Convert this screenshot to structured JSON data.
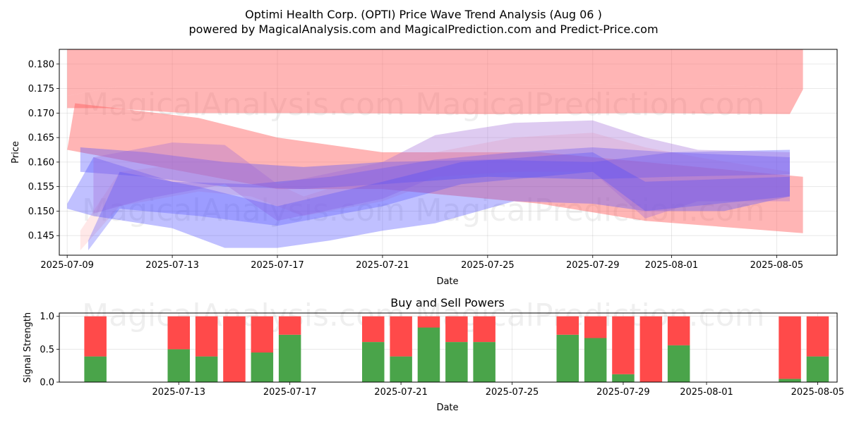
{
  "chart_data": [
    {
      "type": "area",
      "title_line1": "Optimi Health Corp. (OPTI) Price Wave Trend Analysis (Aug 06 )",
      "title_line2": "powered by MagicalAnalysis.com and MagicalPrediction.com and Predict-Price.com",
      "xlabel": "Date",
      "ylabel": "Price",
      "x_range": [
        "2025-07-09",
        "2025-08-07"
      ],
      "ylim": [
        0.141,
        0.183
      ],
      "x_ticks": [
        "2025-07-09",
        "2025-07-13",
        "2025-07-17",
        "2025-07-21",
        "2025-07-25",
        "2025-07-29",
        "2025-08-01",
        "2025-08-05"
      ],
      "y_ticks": [
        "0.145",
        "0.150",
        "0.155",
        "0.160",
        "0.165",
        "0.170",
        "0.175",
        "0.180"
      ],
      "watermarks": [
        "MagicalAnalysis.com",
        "MagicalPrediction.com",
        "MagicalAnalysis.com",
        "MagicalPrediction.com"
      ],
      "colors": {
        "red": "#ff5a5a",
        "blue": "#4a4aff",
        "pink": "#ffb4b4",
        "purple": "#a06ad8"
      },
      "bands": [
        {
          "color": "red",
          "opacity": 0.45,
          "points": [
            [
              0.0,
              0.1735
            ],
            [
              2.0,
              0.1755
            ],
            [
              6.0,
              0.1755
            ],
            [
              12.0,
              0.1755
            ],
            [
              20.0,
              0.176
            ],
            [
              26.0,
              0.1755
            ],
            [
              28.0,
              0.1748
            ]
          ],
          "lower": [
            [
              0.0,
              0.171
            ],
            [
              1.5,
              0.171
            ],
            [
              4.5,
              0.17
            ],
            [
              10.0,
              0.17
            ],
            [
              16.0,
              0.1698
            ],
            [
              22.0,
              0.17
            ],
            [
              27.5,
              0.1698
            ]
          ]
        },
        {
          "color": "red",
          "opacity": 0.45,
          "points": [
            [
              0.0,
              0.183
            ],
            [
              3.0,
              0.183
            ],
            [
              10.0,
              0.183
            ],
            [
              18.0,
              0.183
            ],
            [
              28.0,
              0.183
            ]
          ],
          "lower": [
            [
              0.0,
              0.1735
            ],
            [
              2.0,
              0.1755
            ],
            [
              6.0,
              0.1755
            ],
            [
              12.0,
              0.1755
            ],
            [
              20.0,
              0.176
            ],
            [
              26.0,
              0.1755
            ],
            [
              28.0,
              0.1748
            ]
          ]
        },
        {
          "color": "red",
          "opacity": 0.45,
          "points": [
            [
              0.3,
              0.172
            ],
            [
              5.0,
              0.169
            ],
            [
              8.0,
              0.165
            ],
            [
              12.0,
              0.162
            ],
            [
              18.0,
              0.162
            ],
            [
              22.0,
              0.16
            ],
            [
              28.0,
              0.157
            ]
          ],
          "lower": [
            [
              0.0,
              0.1625
            ],
            [
              4.0,
              0.1585
            ],
            [
              8.0,
              0.1545
            ],
            [
              12.0,
              0.1545
            ],
            [
              18.0,
              0.1515
            ],
            [
              22.0,
              0.148
            ],
            [
              28.0,
              0.1455
            ]
          ]
        },
        {
          "color": "pink",
          "opacity": 0.3,
          "points": [
            [
              0.5,
              0.146
            ],
            [
              2.0,
              0.158
            ],
            [
              5.0,
              0.16
            ],
            [
              7.0,
              0.158
            ],
            [
              9.0,
              0.153
            ],
            [
              12.0,
              0.158
            ],
            [
              14.0,
              0.162
            ],
            [
              17.0,
              0.165
            ],
            [
              20.0,
              0.166
            ],
            [
              22.0,
              0.163
            ],
            [
              24.0,
              0.161
            ],
            [
              27.5,
              0.158
            ]
          ],
          "lower": [
            [
              0.5,
              0.142
            ],
            [
              2.0,
              0.151
            ],
            [
              5.0,
              0.154
            ],
            [
              7.0,
              0.153
            ],
            [
              9.0,
              0.149
            ],
            [
              12.0,
              0.152
            ],
            [
              14.0,
              0.156
            ],
            [
              17.0,
              0.158
            ],
            [
              20.0,
              0.16
            ],
            [
              22.0,
              0.155
            ],
            [
              24.0,
              0.153
            ],
            [
              27.5,
              0.15
            ]
          ]
        },
        {
          "color": "blue",
          "opacity": 0.35,
          "points": [
            [
              0.0,
              0.1515
            ],
            [
              1.0,
              0.161
            ],
            [
              4.0,
              0.156
            ],
            [
              7.0,
              0.1555
            ],
            [
              10.0,
              0.157
            ],
            [
              14.0,
              0.1605
            ],
            [
              17.0,
              0.162
            ],
            [
              20.0,
              0.163
            ],
            [
              23.0,
              0.162
            ],
            [
              27.5,
              0.161
            ]
          ],
          "lower": [
            [
              0.0,
              0.1505
            ],
            [
              1.0,
              0.149
            ],
            [
              4.0,
              0.1465
            ],
            [
              6.0,
              0.1425
            ],
            [
              8.0,
              0.1425
            ],
            [
              10.0,
              0.144
            ],
            [
              12.0,
              0.146
            ],
            [
              14.0,
              0.1475
            ],
            [
              17.0,
              0.152
            ],
            [
              20.0,
              0.1515
            ],
            [
              22.0,
              0.15
            ],
            [
              25.0,
              0.15
            ],
            [
              27.5,
              0.153
            ]
          ]
        },
        {
          "color": "blue",
          "opacity": 0.35,
          "points": [
            [
              0.5,
              0.163
            ],
            [
              3.0,
              0.162
            ],
            [
              6.0,
              0.16
            ],
            [
              9.0,
              0.159
            ],
            [
              12.0,
              0.16
            ],
            [
              16.0,
              0.1605
            ],
            [
              20.0,
              0.16
            ],
            [
              23.0,
              0.162
            ],
            [
              27.5,
              0.1625
            ]
          ],
          "lower": [
            [
              0.5,
              0.158
            ],
            [
              3.0,
              0.157
            ],
            [
              6.0,
              0.155
            ],
            [
              9.0,
              0.1545
            ],
            [
              12.0,
              0.1555
            ],
            [
              16.0,
              0.157
            ],
            [
              20.0,
              0.1565
            ],
            [
              23.0,
              0.157
            ],
            [
              27.5,
              0.1575
            ]
          ]
        },
        {
          "color": "purple",
          "opacity": 0.35,
          "points": [
            [
              1.0,
              0.161
            ],
            [
              4.0,
              0.164
            ],
            [
              6.0,
              0.1635
            ],
            [
              8.0,
              0.1555
            ],
            [
              12.0,
              0.16
            ],
            [
              14.0,
              0.1655
            ],
            [
              17.0,
              0.168
            ],
            [
              20.0,
              0.1685
            ],
            [
              22.0,
              0.165
            ],
            [
              24.0,
              0.1625
            ],
            [
              27.5,
              0.162
            ]
          ],
          "lower": [
            [
              1.0,
              0.1495
            ],
            [
              3.0,
              0.1525
            ],
            [
              6.0,
              0.1555
            ],
            [
              8.0,
              0.148
            ],
            [
              12.0,
              0.1525
            ],
            [
              14.0,
              0.157
            ],
            [
              17.0,
              0.158
            ],
            [
              20.0,
              0.158
            ],
            [
              22.0,
              0.1485
            ],
            [
              24.0,
              0.152
            ],
            [
              27.5,
              0.152
            ]
          ]
        },
        {
          "color": "blue",
          "opacity": 0.3,
          "points": [
            [
              0.8,
              0.144
            ],
            [
              2.0,
              0.158
            ],
            [
              5.0,
              0.155
            ],
            [
              8.0,
              0.151
            ],
            [
              12.0,
              0.156
            ],
            [
              15.0,
              0.16
            ],
            [
              20.0,
              0.162
            ],
            [
              22.0,
              0.156
            ],
            [
              27.5,
              0.157
            ]
          ],
          "lower": [
            [
              0.8,
              0.142
            ],
            [
              2.0,
              0.1505
            ],
            [
              5.0,
              0.149
            ],
            [
              8.0,
              0.147
            ],
            [
              12.0,
              0.151
            ],
            [
              15.0,
              0.1555
            ],
            [
              20.0,
              0.158
            ],
            [
              22.0,
              0.15
            ],
            [
              27.5,
              0.153
            ]
          ]
        }
      ]
    },
    {
      "type": "bar",
      "title": "Buy and Sell Powers",
      "xlabel": "Date",
      "ylabel": "Signal Strength",
      "ylim": [
        0.0,
        1.05
      ],
      "y_ticks": [
        "0.0",
        "0.5",
        "1.0"
      ],
      "x_ticks": [
        "2025-07-13",
        "2025-07-17",
        "2025-07-21",
        "2025-07-25",
        "2025-07-29",
        "2025-08-01",
        "2025-08-05"
      ],
      "x_range_days": [
        -0.3,
        27.7
      ],
      "colors": {
        "buy": "#4aa44a",
        "sell": "#ff4a4a"
      },
      "bars": [
        {
          "day": 1,
          "buy": 0.39
        },
        {
          "day": 4,
          "buy": 0.5
        },
        {
          "day": 5,
          "buy": 0.39
        },
        {
          "day": 6,
          "buy": 0.0
        },
        {
          "day": 7,
          "buy": 0.45
        },
        {
          "day": 8,
          "buy": 0.72
        },
        {
          "day": 11,
          "buy": 0.61
        },
        {
          "day": 12,
          "buy": 0.39
        },
        {
          "day": 13,
          "buy": 0.83
        },
        {
          "day": 14,
          "buy": 0.61
        },
        {
          "day": 15,
          "buy": 0.61
        },
        {
          "day": 18,
          "buy": 0.72
        },
        {
          "day": 19,
          "buy": 0.67
        },
        {
          "day": 20,
          "buy": 0.12
        },
        {
          "day": 21,
          "buy": 0.0
        },
        {
          "day": 22,
          "buy": 0.56
        },
        {
          "day": 26,
          "buy": 0.05
        },
        {
          "day": 27,
          "buy": 0.39
        }
      ]
    }
  ]
}
